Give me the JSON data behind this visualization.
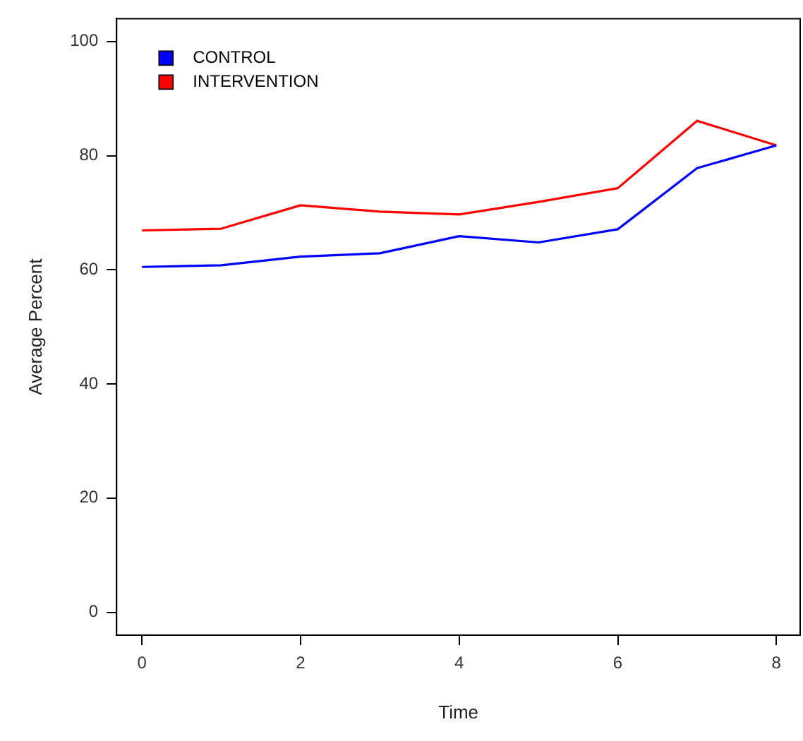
{
  "chart_data": {
    "type": "line",
    "xlabel": "Time",
    "ylabel": "Average Percent",
    "x": [
      0,
      1,
      2,
      3,
      4,
      5,
      6,
      7,
      8
    ],
    "series": [
      {
        "name": "CONTROL",
        "color": "#0000ff",
        "values": [
          60.5,
          60.8,
          62.3,
          62.9,
          65.9,
          64.8,
          67.1,
          77.8,
          81.8
        ]
      },
      {
        "name": "INTERVENTION",
        "color": "#ff0000",
        "values": [
          66.9,
          67.2,
          71.3,
          70.2,
          69.7,
          71.9,
          74.3,
          86.1,
          81.8
        ]
      }
    ],
    "xlim": [
      -0.32,
      8.3
    ],
    "xticks": [
      0,
      2,
      4,
      6,
      8
    ],
    "ylim": [
      -4,
      104
    ],
    "yticks": [
      0,
      20,
      40,
      60,
      80,
      100
    ],
    "grid": false,
    "legend": "top left",
    "marker": "none",
    "line_style": "solid"
  }
}
